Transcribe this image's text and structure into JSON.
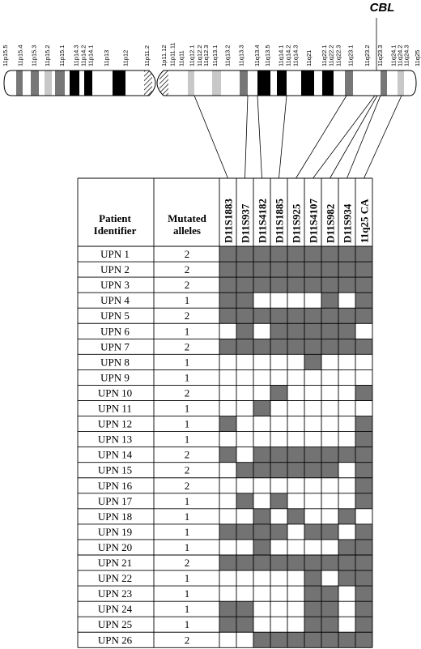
{
  "gene_label": "CBL",
  "bands": [
    "11p15.5",
    "11p15.4",
    "11p15.3",
    "11p15.2",
    "11p15.1",
    "11p14.3",
    "11p14.2",
    "11p14.1",
    "11p13",
    "11p12",
    "11p11.2",
    "1p11.12",
    "11p11.11",
    "11q11",
    "11q12.1",
    "11q12.2",
    "11q12.3",
    "11q13.1",
    "11q13.2",
    "11q13.3",
    "11q13.4",
    "11q13.5",
    "11q14.1",
    "11q14.2",
    "11q14.3",
    "11q21",
    "11q22.1",
    "11q22.2",
    "11q22.3",
    "11q23.1",
    "11q23.2",
    "11q23.3",
    "11q24.1",
    "11q24.2",
    "11q24.3",
    "11q25"
  ],
  "headers": {
    "patient": "Patient Identifier",
    "alleles": "Mutated alleles"
  },
  "markers": [
    "D11S1883",
    "D11S937",
    "D11S4182",
    "D11S1885",
    "D11S925",
    "D11S4107",
    "D11S982",
    "D11S934",
    "11q25 CA"
  ],
  "patients": [
    {
      "id": "UPN 1",
      "alleles": "2",
      "cells": [
        1,
        1,
        1,
        1,
        1,
        1,
        1,
        1,
        1
      ]
    },
    {
      "id": "UPN 2",
      "alleles": "2",
      "cells": [
        1,
        1,
        1,
        1,
        1,
        1,
        1,
        1,
        1
      ]
    },
    {
      "id": "UPN 3",
      "alleles": "2",
      "cells": [
        1,
        1,
        1,
        1,
        1,
        1,
        1,
        1,
        1
      ]
    },
    {
      "id": "UPN 4",
      "alleles": "1",
      "cells": [
        1,
        1,
        0,
        0,
        0,
        0,
        1,
        0,
        1
      ]
    },
    {
      "id": "UPN 5",
      "alleles": "2",
      "cells": [
        1,
        1,
        1,
        1,
        1,
        1,
        1,
        1,
        1
      ]
    },
    {
      "id": "UPN 6",
      "alleles": "1",
      "cells": [
        0,
        1,
        0,
        1,
        1,
        1,
        1,
        1,
        0
      ]
    },
    {
      "id": "UPN 7",
      "alleles": "2",
      "cells": [
        1,
        1,
        1,
        1,
        1,
        1,
        1,
        1,
        1
      ]
    },
    {
      "id": "UPN 8",
      "alleles": "1",
      "cells": [
        0,
        0,
        0,
        0,
        0,
        1,
        0,
        0,
        0
      ]
    },
    {
      "id": "UPN 9",
      "alleles": "1",
      "cells": [
        0,
        0,
        0,
        0,
        0,
        0,
        0,
        0,
        0
      ]
    },
    {
      "id": "UPN 10",
      "alleles": "2",
      "cells": [
        0,
        0,
        0,
        1,
        0,
        0,
        0,
        0,
        1
      ]
    },
    {
      "id": "UPN 11",
      "alleles": "1",
      "cells": [
        0,
        0,
        1,
        0,
        0,
        0,
        0,
        0,
        0
      ]
    },
    {
      "id": "UPN 12",
      "alleles": "1",
      "cells": [
        1,
        0,
        0,
        0,
        0,
        0,
        0,
        0,
        1
      ]
    },
    {
      "id": "UPN 13",
      "alleles": "1",
      "cells": [
        0,
        0,
        0,
        0,
        0,
        0,
        0,
        0,
        1
      ]
    },
    {
      "id": "UPN 14",
      "alleles": "2",
      "cells": [
        1,
        0,
        1,
        1,
        1,
        1,
        1,
        1,
        1
      ]
    },
    {
      "id": "UPN 15",
      "alleles": "2",
      "cells": [
        0,
        1,
        1,
        1,
        1,
        1,
        1,
        0,
        1
      ]
    },
    {
      "id": "UPN 16",
      "alleles": "2",
      "cells": [
        0,
        0,
        0,
        0,
        0,
        0,
        0,
        0,
        1
      ]
    },
    {
      "id": "UPN 17",
      "alleles": "1",
      "cells": [
        0,
        1,
        0,
        1,
        0,
        0,
        0,
        0,
        1
      ]
    },
    {
      "id": "UPN 18",
      "alleles": "1",
      "cells": [
        0,
        0,
        1,
        0,
        1,
        0,
        0,
        1,
        0
      ]
    },
    {
      "id": "UPN 19",
      "alleles": "1",
      "cells": [
        1,
        1,
        1,
        1,
        0,
        1,
        1,
        0,
        1
      ]
    },
    {
      "id": "UPN 20",
      "alleles": "1",
      "cells": [
        0,
        0,
        1,
        0,
        0,
        0,
        0,
        1,
        1
      ]
    },
    {
      "id": "UPN 21",
      "alleles": "2",
      "cells": [
        1,
        1,
        1,
        1,
        1,
        1,
        1,
        1,
        1
      ]
    },
    {
      "id": "UPN 22",
      "alleles": "1",
      "cells": [
        0,
        0,
        0,
        0,
        0,
        1,
        0,
        1,
        1
      ]
    },
    {
      "id": "UPN 23",
      "alleles": "1",
      "cells": [
        0,
        0,
        0,
        0,
        0,
        1,
        1,
        0,
        1
      ]
    },
    {
      "id": "UPN 24",
      "alleles": "1",
      "cells": [
        1,
        1,
        0,
        0,
        0,
        1,
        1,
        0,
        1
      ]
    },
    {
      "id": "UPN 25",
      "alleles": "1",
      "cells": [
        1,
        1,
        0,
        0,
        0,
        1,
        1,
        0,
        1
      ]
    },
    {
      "id": "UPN 26",
      "alleles": "2",
      "cells": [
        0,
        0,
        1,
        1,
        1,
        1,
        1,
        1,
        1
      ]
    }
  ],
  "colors": {
    "filled": "#737373",
    "empty": "#ffffff",
    "grid": "#000000",
    "black_band": "#000000",
    "dark_band": "#777777",
    "light_band": "#c8c8c8",
    "outline": "#000000"
  }
}
